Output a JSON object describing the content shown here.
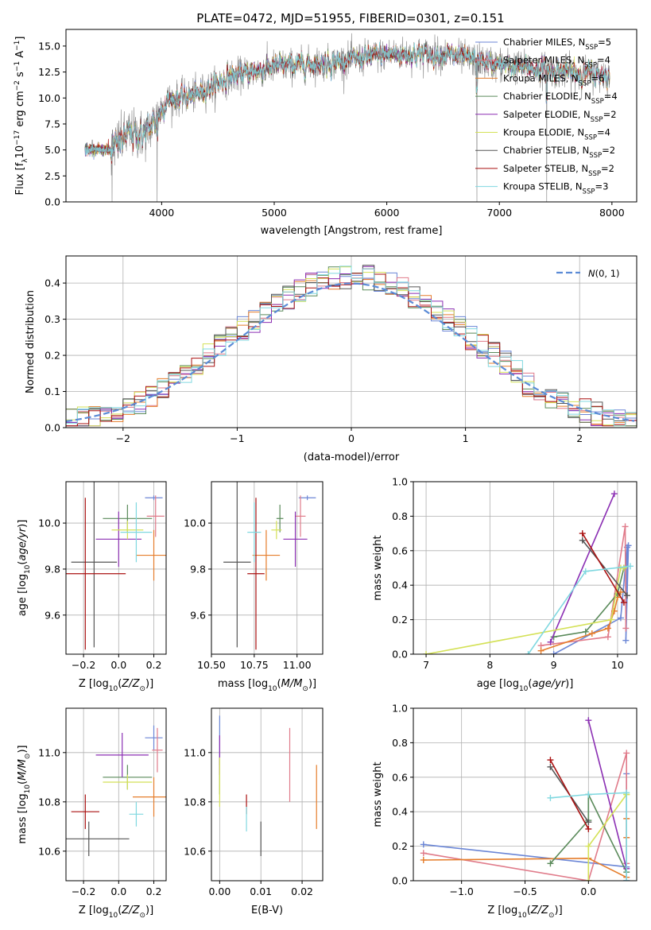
{
  "title": "PLATE=0472, MJD=51955, FIBERID=0301, z=0.151",
  "colors": {
    "chabrier_miles": "#6b86d6",
    "salpeter_miles": "#e07b8a",
    "kroupa_miles": "#e57d2b",
    "chabrier_elodie": "#5a8a5a",
    "salpeter_elodie": "#8b2fb3",
    "kroupa_elodie": "#d4e157",
    "chabrier_stelib": "#555555",
    "salpeter_stelib": "#aa1111",
    "kroupa_stelib": "#80d8e0",
    "data": "#7f7f7f",
    "gaussian": "#5b8bd6"
  },
  "legend_main": [
    {
      "text": "Chabrier MILES, N$_{SSP}$=5",
      "pre": "Chabrier MILES, N",
      "sub": "SSP",
      "post": "=5",
      "color": "#6b86d6"
    },
    {
      "text": "Salpeter MILES, N$_{SSP}$=4",
      "pre": "Salpeter MILES, N",
      "sub": "SSP",
      "post": "=4",
      "color": "#e07b8a"
    },
    {
      "text": "Kroupa MILES, N$_{SSP}$=6",
      "pre": "Kroupa MILES, N",
      "sub": "SSP",
      "post": "=6",
      "color": "#e57d2b"
    },
    {
      "text": "Chabrier ELODIE, N$_{SSP}$=4",
      "pre": "Chabrier ELODIE, N",
      "sub": "SSP",
      "post": "=4",
      "color": "#5a8a5a"
    },
    {
      "text": "Salpeter ELODIE, N$_{SSP}$=2",
      "pre": "Salpeter ELODIE, N",
      "sub": "SSP",
      "post": "=2",
      "color": "#8b2fb3"
    },
    {
      "text": "Kroupa ELODIE, N$_{SSP}$=4",
      "pre": "Kroupa ELODIE, N",
      "sub": "SSP",
      "post": "=4",
      "color": "#d4e157"
    },
    {
      "text": "Chabrier STELIB, N$_{SSP}$=2",
      "pre": "Chabrier STELIB, N",
      "sub": "SSP",
      "post": "=2",
      "color": "#555555"
    },
    {
      "text": "Salpeter STELIB, N$_{SSP}$=2",
      "pre": "Salpeter STELIB, N",
      "sub": "SSP",
      "post": "=2",
      "color": "#aa1111"
    },
    {
      "text": "Kroupa STELIB, N$_{SSP}$=3",
      "pre": "Kroupa STELIB, N",
      "sub": "SSP",
      "post": "=3",
      "color": "#80d8e0"
    }
  ],
  "chart_data": [
    {
      "id": "spectrum",
      "type": "line",
      "xlabel": "wavelength [Angstrom, rest frame]",
      "ylabel": "Flux [f$_\\lambda$10$^{-17}$ erg cm$^{-2}$ s$^{-1}$ A$^{-1}$]",
      "xlim": [
        3150,
        8220
      ],
      "ylim": [
        0,
        16.6
      ],
      "xticks": [
        "4000",
        "5000",
        "6000",
        "7000",
        "8000"
      ],
      "yticks": [
        "0.0",
        "2.5",
        "5.0",
        "7.5",
        "10.0",
        "12.5",
        "15.0"
      ],
      "data_x_range": [
        3320,
        7980
      ],
      "continuum": [
        [
          3320,
          5.1
        ],
        [
          3550,
          5.0
        ],
        [
          3700,
          6.5
        ],
        [
          3850,
          6.5
        ],
        [
          3950,
          8.0
        ],
        [
          4050,
          9.8
        ],
        [
          4300,
          10.3
        ],
        [
          4600,
          12.0
        ],
        [
          5000,
          13.0
        ],
        [
          5500,
          13.4
        ],
        [
          6000,
          14.2
        ],
        [
          6500,
          14.2
        ],
        [
          7000,
          13.2
        ],
        [
          7500,
          12.6
        ],
        [
          7980,
          12.2
        ]
      ],
      "spikes": [
        [
          3560,
          0
        ],
        [
          3960,
          0
        ],
        [
          6800,
          0
        ],
        [
          7420,
          0
        ]
      ]
    },
    {
      "id": "residual-hist",
      "type": "histogram",
      "xlabel": "(data-model)/error",
      "ylabel": "Normed distribution",
      "xlim": [
        -2.5,
        2.5
      ],
      "ylim": [
        0,
        0.475
      ],
      "xticks": [
        "−2",
        "−1",
        "0",
        "1",
        "2"
      ],
      "yticks": [
        "0.0",
        "0.1",
        "0.2",
        "0.3",
        "0.4"
      ],
      "bin_width": 0.1,
      "legend": "$\\mathcal{N}(0,1)$",
      "gaussian": {
        "mean": 0,
        "sigma": 1
      }
    },
    {
      "id": "age-vs-z",
      "type": "errorbar",
      "xlabel": "Z [log$_{10}$(Z/Z$_\\odot$)]",
      "ylabel": "age  [log$_{10}$(age/yr)]",
      "xlim": [
        -0.3,
        0.27
      ],
      "ylim": [
        9.43,
        10.18
      ],
      "xticks": [
        "−0.2",
        "0.0",
        "0.2"
      ],
      "yticks": [
        "9.6",
        "9.8",
        "10.0"
      ],
      "points": [
        {
          "x": 0.2,
          "y": 10.11,
          "ex": 0.05,
          "ey": 0.01,
          "color": "#6b86d6"
        },
        {
          "x": 0.21,
          "y": 10.03,
          "ex": 0.05,
          "ey": 0.09,
          "color": "#e07b8a"
        },
        {
          "x": 0.2,
          "y": 9.86,
          "ex": 0.1,
          "ey": 0.11,
          "color": "#e57d2b"
        },
        {
          "x": 0.05,
          "y": 10.02,
          "ex": 0.14,
          "ey": 0.06,
          "color": "#5a8a5a"
        },
        {
          "x": 0.0,
          "y": 9.93,
          "ex": 0.13,
          "ey": 0.12,
          "color": "#8b2fb3"
        },
        {
          "x": 0.05,
          "y": 9.97,
          "ex": 0.09,
          "ey": 0.04,
          "color": "#d4e157"
        },
        {
          "x": -0.14,
          "y": 9.83,
          "ex": 0.13,
          "ey": 0.37,
          "color": "#555555"
        },
        {
          "x": -0.19,
          "y": 9.78,
          "ex": 0.23,
          "ey": 0.33,
          "color": "#aa1111"
        },
        {
          "x": 0.1,
          "y": 9.96,
          "ex": 0.09,
          "ey": 0.13,
          "color": "#80d8e0"
        }
      ]
    },
    {
      "id": "age-vs-mass",
      "type": "errorbar",
      "xlabel": "mass [log$_{10}$(M/M$_\\odot$)]",
      "ylabel": "",
      "xlim": [
        10.5,
        11.15
      ],
      "ylim": [
        9.43,
        10.18
      ],
      "xticks": [
        "10.50",
        "10.75",
        "11.00"
      ],
      "yticks": [
        "9.6",
        "9.8",
        "10.0"
      ],
      "points": [
        {
          "x": 11.06,
          "y": 10.11,
          "ex": 0.05,
          "ey": 0.01,
          "color": "#6b86d6"
        },
        {
          "x": 11.02,
          "y": 10.03,
          "ex": 0.03,
          "ey": 0.09,
          "color": "#e07b8a"
        },
        {
          "x": 10.82,
          "y": 9.86,
          "ex": 0.08,
          "ey": 0.11,
          "color": "#e57d2b"
        },
        {
          "x": 10.9,
          "y": 10.02,
          "ex": 0.02,
          "ey": 0.06,
          "color": "#5a8a5a"
        },
        {
          "x": 10.99,
          "y": 9.93,
          "ex": 0.07,
          "ey": 0.12,
          "color": "#8b2fb3"
        },
        {
          "x": 10.88,
          "y": 9.97,
          "ex": 0.03,
          "ey": 0.04,
          "color": "#d4e157"
        },
        {
          "x": 10.65,
          "y": 9.83,
          "ex": 0.08,
          "ey": 0.37,
          "color": "#555555"
        },
        {
          "x": 10.76,
          "y": 9.78,
          "ex": 0.05,
          "ey": 0.33,
          "color": "#aa1111"
        },
        {
          "x": 10.75,
          "y": 9.96,
          "ex": 0.04,
          "ey": 0.13,
          "color": "#80d8e0"
        }
      ]
    },
    {
      "id": "massweight-vs-age",
      "type": "line",
      "xlabel": "age  [log$_{10}$(age/yr)]",
      "ylabel": "mass weight",
      "xlim": [
        6.8,
        10.3
      ],
      "ylim": [
        0,
        1
      ],
      "xticks": [
        "7",
        "8",
        "9",
        "10"
      ],
      "yticks": [
        "0.0",
        "0.2",
        "0.4",
        "0.6",
        "0.8",
        "1.0"
      ],
      "series": [
        {
          "color": "#6b86d6",
          "x": [
            9.0,
            10.05,
            10.15,
            10.13,
            10.17
          ],
          "y": [
            0.0,
            0.21,
            0.62,
            0.08,
            0.63
          ]
        },
        {
          "color": "#e07b8a",
          "x": [
            8.8,
            9.85,
            10.12,
            10.13
          ],
          "y": [
            0.05,
            0.1,
            0.74,
            0.15
          ]
        },
        {
          "color": "#e57d2b",
          "x": [
            8.8,
            9.6,
            9.85,
            9.95,
            10.0,
            10.05
          ],
          "y": [
            0.02,
            0.12,
            0.15,
            0.25,
            0.33,
            0.36
          ]
        },
        {
          "color": "#5a8a5a",
          "x": [
            9.0,
            9.5,
            10.0,
            10.1
          ],
          "y": [
            0.1,
            0.13,
            0.35,
            0.5
          ]
        },
        {
          "color": "#8b2fb3",
          "x": [
            8.95,
            9.95
          ],
          "y": [
            0.07,
            0.93
          ]
        },
        {
          "color": "#d4e157",
          "x": [
            7.0,
            9.9,
            10.05,
            10.1
          ],
          "y": [
            0.0,
            0.2,
            0.5,
            0.5
          ]
        },
        {
          "color": "#555555",
          "x": [
            9.45,
            10.15
          ],
          "y": [
            0.66,
            0.34
          ]
        },
        {
          "color": "#aa1111",
          "x": [
            9.45,
            10.1
          ],
          "y": [
            0.7,
            0.3
          ]
        },
        {
          "color": "#80d8e0",
          "x": [
            8.6,
            9.5,
            10.2
          ],
          "y": [
            0.0,
            0.48,
            0.51
          ]
        }
      ]
    },
    {
      "id": "mass-vs-z",
      "type": "errorbar",
      "xlabel": "Z [log$_{10}$(Z/Z$_\\odot$)]",
      "ylabel": "mass [log$_{10}$(M/M$_\\odot$)]",
      "xlim": [
        -0.3,
        0.27
      ],
      "ylim": [
        10.48,
        11.18
      ],
      "xticks": [
        "−0.2",
        "0.0",
        "0.2"
      ],
      "yticks": [
        "10.6",
        "10.8",
        "11.0"
      ],
      "points": [
        {
          "x": 0.2,
          "y": 11.06,
          "ex": 0.05,
          "ey": 0.05,
          "color": "#6b86d6"
        },
        {
          "x": 0.22,
          "y": 11.01,
          "ex": 0.03,
          "ey": 0.09,
          "color": "#e07b8a"
        },
        {
          "x": 0.2,
          "y": 10.82,
          "ex": 0.12,
          "ey": 0.08,
          "color": "#e57d2b"
        },
        {
          "x": 0.05,
          "y": 10.9,
          "ex": 0.14,
          "ey": 0.05,
          "color": "#5a8a5a"
        },
        {
          "x": 0.02,
          "y": 10.99,
          "ex": 0.15,
          "ey": 0.09,
          "color": "#8b2fb3"
        },
        {
          "x": 0.05,
          "y": 10.88,
          "ex": 0.14,
          "ey": 0.03,
          "color": "#d4e157"
        },
        {
          "x": -0.17,
          "y": 10.65,
          "ex": 0.23,
          "ey": 0.07,
          "color": "#555555"
        },
        {
          "x": -0.19,
          "y": 10.76,
          "ex": 0.08,
          "ey": 0.07,
          "color": "#aa1111"
        },
        {
          "x": 0.1,
          "y": 10.75,
          "ex": 0.04,
          "ey": 0.05,
          "color": "#80d8e0"
        }
      ]
    },
    {
      "id": "mass-vs-ebv",
      "type": "errorbar",
      "xlabel": "E(B-V)",
      "ylabel": "",
      "xlim": [
        -0.002,
        0.025
      ],
      "ylim": [
        10.48,
        11.18
      ],
      "xticks": [
        "0.00",
        "0.01",
        "0.02"
      ],
      "yticks": [
        "10.6",
        "10.8",
        "11.0"
      ],
      "points": [
        {
          "x": 0.0,
          "y": 11.05,
          "ex": 0,
          "ey": 0.1,
          "color": "#6b86d6"
        },
        {
          "x": 0.017,
          "y": 10.95,
          "ex": 0,
          "ey": 0.15,
          "color": "#e07b8a"
        },
        {
          "x": 0.0235,
          "y": 10.82,
          "ex": 0,
          "ey": 0.13,
          "color": "#e57d2b"
        },
        {
          "x": 0.0,
          "y": 10.9,
          "ex": 0,
          "ey": 0.07,
          "color": "#5a8a5a"
        },
        {
          "x": 0.0,
          "y": 10.99,
          "ex": 0,
          "ey": 0.08,
          "color": "#8b2fb3"
        },
        {
          "x": 0.0,
          "y": 10.88,
          "ex": 0,
          "ey": 0.1,
          "color": "#d4e157"
        },
        {
          "x": 0.01,
          "y": 10.65,
          "ex": 0,
          "ey": 0.07,
          "color": "#555555"
        },
        {
          "x": 0.0065,
          "y": 10.79,
          "ex": 0,
          "ey": 0.04,
          "color": "#aa1111"
        },
        {
          "x": 0.0065,
          "y": 10.73,
          "ex": 0,
          "ey": 0.05,
          "color": "#80d8e0"
        }
      ]
    },
    {
      "id": "massweight-vs-z",
      "type": "line",
      "xlabel": "Z [log$_{10}$(Z/Z$_\\odot$)]",
      "ylabel": "mass weight",
      "xlim": [
        -1.38,
        0.38
      ],
      "ylim": [
        0,
        1
      ],
      "xticks": [
        "−1.0",
        "−0.5",
        "0.0"
      ],
      "yticks": [
        "0.0",
        "0.2",
        "0.4",
        "0.6",
        "0.8",
        "1.0"
      ],
      "series": [
        {
          "color": "#6b86d6",
          "x": [
            -1.3,
            0.3,
            0.3,
            0.3
          ],
          "y": [
            0.21,
            0.08,
            0.62,
            0.0
          ]
        },
        {
          "color": "#e07b8a",
          "x": [
            -1.3,
            0.0,
            0.3,
            0.3
          ],
          "y": [
            0.16,
            0.0,
            0.74,
            0.1
          ]
        },
        {
          "color": "#e57d2b",
          "x": [
            -1.3,
            0.0,
            0.3,
            0.3,
            0.3
          ],
          "y": [
            0.12,
            0.13,
            0.02,
            0.25,
            0.36
          ]
        },
        {
          "color": "#5a8a5a",
          "x": [
            -0.3,
            0.0,
            0.0,
            0.3
          ],
          "y": [
            0.1,
            0.35,
            0.5,
            0.05
          ]
        },
        {
          "color": "#8b2fb3",
          "x": [
            0.0,
            0.3
          ],
          "y": [
            0.93,
            0.07
          ]
        },
        {
          "color": "#d4e157",
          "x": [
            0.0,
            0.0,
            0.3,
            0.3
          ],
          "y": [
            0.0,
            0.2,
            0.5,
            0.5
          ]
        },
        {
          "color": "#555555",
          "x": [
            -0.3,
            0.0
          ],
          "y": [
            0.66,
            0.34
          ]
        },
        {
          "color": "#aa1111",
          "x": [
            -0.3,
            0.0
          ],
          "y": [
            0.7,
            0.3
          ]
        },
        {
          "color": "#80d8e0",
          "x": [
            -0.3,
            0.0,
            0.3,
            0.3
          ],
          "y": [
            0.48,
            0.5,
            0.51,
            0.0
          ]
        }
      ]
    }
  ]
}
